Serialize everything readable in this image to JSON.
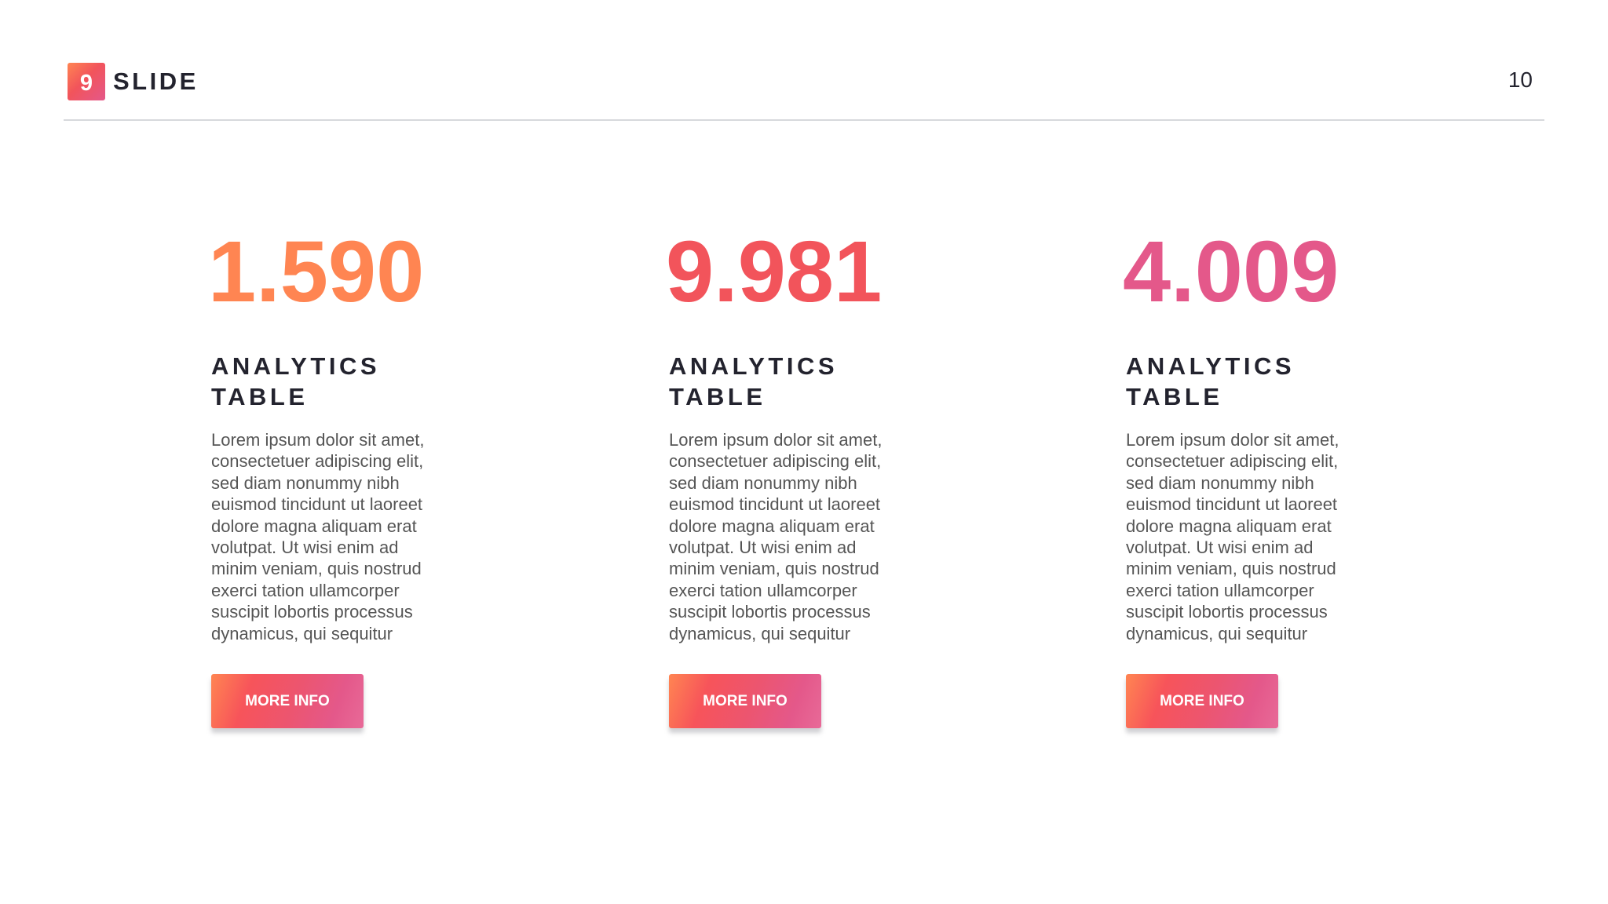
{
  "header": {
    "logo_number": "9",
    "brand": "SLIDE",
    "page_number": "10"
  },
  "colors": {
    "orange": "#FF8552",
    "red": "#F2545B",
    "pink": "#E4588A",
    "text_dark": "#23232E",
    "text_body": "#555555"
  },
  "columns": [
    {
      "value": "1.590",
      "color": "#FF8552",
      "heading_line1": "ANALYTICS",
      "heading_line2": "TABLE",
      "body": "Lorem ipsum dolor sit amet, consectetuer adipiscing elit, sed diam nonummy nibh euismod tincidunt ut laoreet dolore magna aliquam erat volutpat. Ut wisi enim ad minim veniam, quis nostrud exerci tation ullamcorper suscipit lobortis processus dynamicus, qui sequitur",
      "button": "MORE INFO"
    },
    {
      "value": "9.981",
      "color": "#F2545B",
      "heading_line1": "ANALYTICS",
      "heading_line2": "TABLE",
      "body": "Lorem ipsum dolor sit amet, consectetuer adipiscing elit, sed diam nonummy nibh euismod tincidunt ut laoreet dolore magna aliquam erat volutpat. Ut wisi enim ad minim veniam, quis nostrud exerci tation ullamcorper suscipit lobortis processus dynamicus, qui sequitur",
      "button": "MORE INFO"
    },
    {
      "value": "4.009",
      "color": "#E4588A",
      "heading_line1": "ANALYTICS",
      "heading_line2": "TABLE",
      "body": "Lorem ipsum dolor sit amet, consectetuer adipiscing elit, sed diam nonummy nibh euismod tincidunt ut laoreet dolore magna aliquam erat volutpat. Ut wisi enim ad minim veniam, quis nostrud exerci tation ullamcorper suscipit lobortis processus dynamicus, qui sequitur",
      "button": "MORE INFO"
    }
  ]
}
